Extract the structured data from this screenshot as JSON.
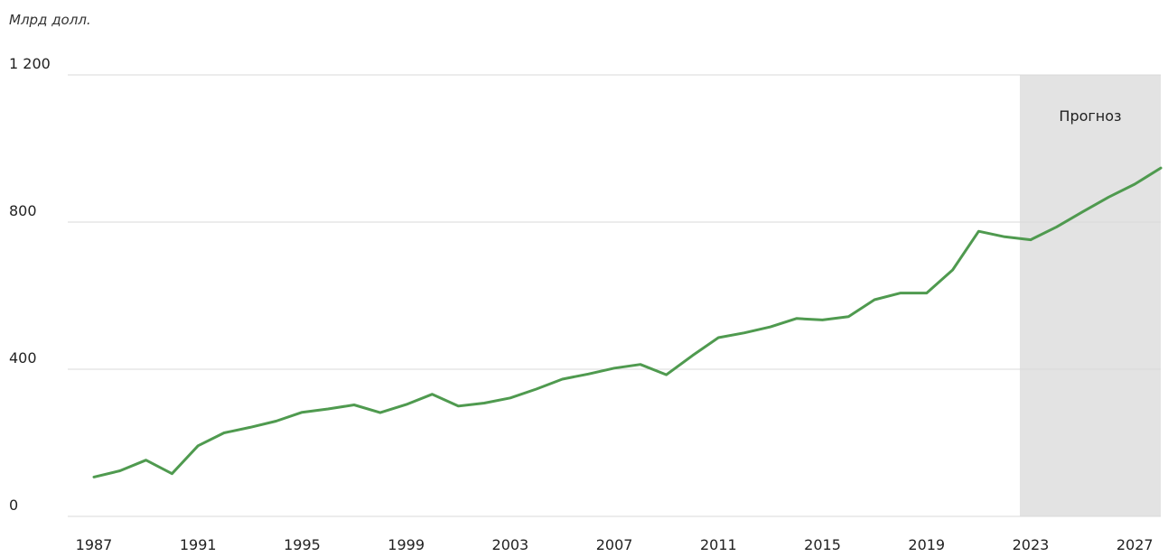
{
  "colors": {
    "line": "#4f9a4f",
    "forecast_band": "#e3e3e3",
    "grid": "#d9d9d9"
  },
  "chart_data": {
    "type": "line",
    "unit_label": "Млрд долл.",
    "forecast_label": "Прогноз",
    "forecast_start": 2023,
    "xlim": [
      1987,
      2028
    ],
    "ylim": [
      0,
      1200
    ],
    "y_ticks": [
      {
        "value": 0,
        "label": "0"
      },
      {
        "value": 400,
        "label": "400"
      },
      {
        "value": 800,
        "label": "800"
      },
      {
        "value": 1200,
        "label": "1 200"
      }
    ],
    "x_ticks": [
      {
        "value": 1987,
        "label": "1987"
      },
      {
        "value": 1991,
        "label": "1991"
      },
      {
        "value": 1995,
        "label": "1995"
      },
      {
        "value": 1999,
        "label": "1999"
      },
      {
        "value": 2003,
        "label": "2003"
      },
      {
        "value": 2007,
        "label": "2007"
      },
      {
        "value": 2011,
        "label": "2011"
      },
      {
        "value": 2015,
        "label": "2015"
      },
      {
        "value": 2019,
        "label": "2019"
      },
      {
        "value": 2023,
        "label": "2023"
      },
      {
        "value": 2027,
        "label": "2027"
      }
    ],
    "grid": true,
    "series": [
      {
        "x": [
          1987,
          1988,
          1989,
          1990,
          1991,
          1992,
          1993,
          1994,
          1995,
          1996,
          1997,
          1998,
          1999,
          2000,
          2001,
          2002,
          2003,
          2004,
          2005,
          2006,
          2007,
          2008,
          2009,
          2010,
          2011,
          2012,
          2013,
          2014,
          2015,
          2016,
          2017,
          2018,
          2019,
          2020,
          2021,
          2022,
          2023,
          2024,
          2025,
          2026,
          2027,
          2028
        ],
        "values": [
          107,
          124,
          153,
          116,
          192,
          227,
          242,
          259,
          283,
          292,
          303,
          282,
          304,
          332,
          300,
          308,
          322,
          346,
          373,
          387,
          403,
          413,
          385,
          437,
          486,
          499,
          515,
          538,
          534,
          543,
          589,
          607,
          607,
          670,
          775,
          760,
          752,
          787,
          828,
          868,
          903,
          947
        ]
      }
    ]
  }
}
